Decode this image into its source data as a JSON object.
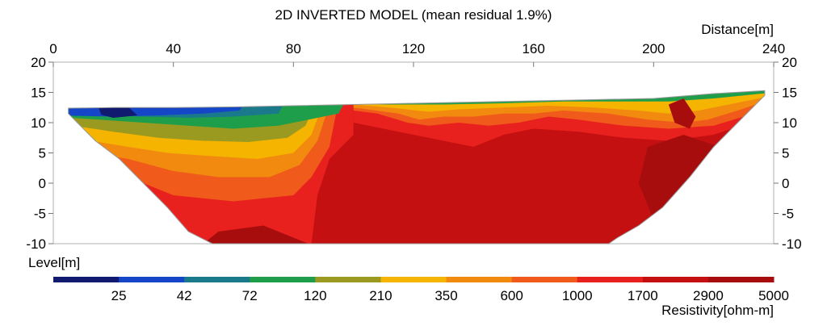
{
  "chart_data": {
    "type": "heatmap",
    "title": "2D INVERTED MODEL (mean residual 1.9%)",
    "xlabel": "Distance[m]",
    "ylabel": "Level[m]",
    "xlim": [
      0,
      240
    ],
    "ylim": [
      -10,
      20
    ],
    "x_ticks": [
      "0",
      "40",
      "80",
      "120",
      "160",
      "200",
      "240"
    ],
    "y_ticks_left": [
      "20",
      "15",
      "10",
      "5",
      "0",
      "-5",
      "-10"
    ],
    "y_ticks_right": [
      "20",
      "15",
      "10",
      "5",
      "0",
      "-5",
      "-10"
    ],
    "x_tick_values": [
      0,
      40,
      80,
      120,
      160,
      200,
      240
    ],
    "y_tick_values": [
      20,
      15,
      10,
      5,
      0,
      -5,
      -10
    ],
    "colorbar": {
      "label": "Resistivity[ohm-m]",
      "colors": [
        "#101a6e",
        "#1546c8",
        "#1a7a8c",
        "#1e9e4a",
        "#9a9a20",
        "#f5b400",
        "#f28a10",
        "#f05a1a",
        "#e8201e",
        "#c41010",
        "#a80d0d"
      ],
      "tick_labels": [
        "25",
        "42",
        "72",
        "120",
        "210",
        "350",
        "600",
        "1000",
        "1700",
        "2900",
        "5000"
      ]
    },
    "model_top": {
      "x": [
        5,
        20,
        40,
        60,
        80,
        100,
        120,
        140,
        160,
        180,
        200,
        220,
        237
      ],
      "y": [
        12.4,
        12.5,
        12.5,
        12.6,
        12.8,
        13.0,
        13.2,
        13.4,
        13.6,
        13.8,
        14.0,
        14.8,
        15.3
      ]
    }
  }
}
